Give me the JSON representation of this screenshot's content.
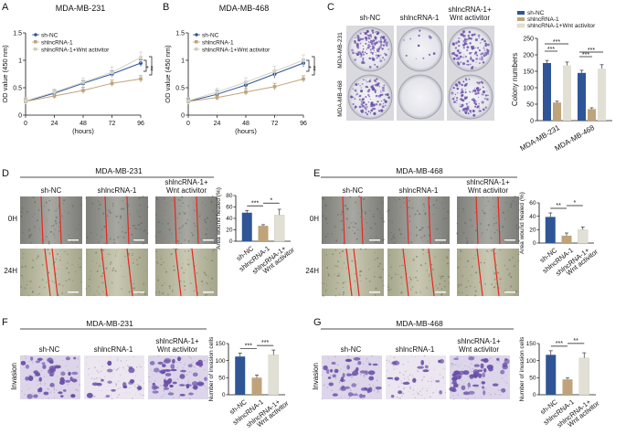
{
  "panels": {
    "A": {
      "letter": "A",
      "title": "MDA-MB-231",
      "legend": [
        "sh-NC",
        "shlncRNA-1",
        "shlncRNA-1+Wnt activitor"
      ],
      "sig": [
        "*",
        "**"
      ]
    },
    "B": {
      "letter": "B",
      "title": "MDA-MB-468",
      "legend": [
        "sh-NC",
        "shlncRNA-1",
        "shlncRNA-1+Wnt activitor"
      ],
      "sig": [
        "*",
        "**"
      ]
    },
    "C": {
      "letter": "C",
      "col_labels": [
        "sh-NC",
        "shlncRNA-1",
        "shlncRNA-1+",
        "Wnt activitor"
      ],
      "row_labels": [
        "MDA-MB-231",
        "MDA-MB-468"
      ],
      "sig": [
        "***",
        "***",
        "***",
        "***"
      ]
    },
    "D": {
      "letter": "D",
      "title": "MDA-MB-231",
      "col_labels": [
        "sh-NC",
        "shlncRNA-1",
        "shlncRNA-1+",
        "Wnt activitor"
      ],
      "row_labels": [
        "0H",
        "24H"
      ],
      "sig": [
        "***",
        "*"
      ]
    },
    "E": {
      "letter": "E",
      "title": "MDA-MB-468",
      "col_labels": [
        "sh-NC",
        "shlncRNA-1",
        "shlncRNA-1+",
        "Wnt activitor"
      ],
      "row_labels": [
        "0H",
        "24H"
      ],
      "sig": [
        "**",
        "*"
      ]
    },
    "F": {
      "letter": "F",
      "title": "MDA-MB-231",
      "col_labels": [
        "sh-NC",
        "shlncRNA-1",
        "shlncRNA-1+",
        "Wnt activitor"
      ],
      "row_label": "Invasion",
      "sig": [
        "***",
        "***"
      ]
    },
    "G": {
      "letter": "G",
      "title": "MDA-MB-468",
      "col_labels": [
        "sh-NC",
        "shlncRNA-1",
        "shlncRNA-1+",
        "Wnt activitor"
      ],
      "row_label": "Invasion",
      "sig": [
        "***",
        "**"
      ]
    }
  },
  "colors": {
    "shNC": "#2f5597",
    "shlnc": "#bfa37a",
    "wnt": "#e2e0d4",
    "scratch": "#e8281e",
    "stain": "#6a4fa8"
  },
  "chart_data": [
    {
      "id": "A",
      "type": "line",
      "title": "MDA-MB-231",
      "xlabel": "(hours)",
      "ylabel": "OD value (450 nm)",
      "x": [
        0,
        24,
        48,
        72,
        96
      ],
      "xlim": [
        0,
        96
      ],
      "xticks": [
        "0",
        "24",
        "48",
        "72",
        "96"
      ],
      "ylim": [
        0,
        1.5
      ],
      "yticks": [
        "0",
        "0.5",
        "1",
        "1.5"
      ],
      "series": [
        {
          "name": "sh-NC",
          "values": [
            0.25,
            0.4,
            0.58,
            0.75,
            0.95
          ],
          "err": [
            0.05,
            0.05,
            0.05,
            0.06,
            0.06
          ]
        },
        {
          "name": "shlncRNA-1",
          "values": [
            0.25,
            0.35,
            0.45,
            0.58,
            0.66
          ],
          "err": [
            0.05,
            0.05,
            0.06,
            0.06,
            0.06
          ]
        },
        {
          "name": "shlncRNA-1+Wnt activitor",
          "values": [
            0.26,
            0.42,
            0.6,
            0.78,
            1.05
          ],
          "err": [
            0.06,
            0.06,
            0.08,
            0.1,
            0.1
          ]
        }
      ]
    },
    {
      "id": "B",
      "type": "line",
      "title": "MDA-MB-468",
      "xlabel": "(hours)",
      "ylabel": "OD value (450 nm)",
      "x": [
        0,
        24,
        48,
        72,
        96
      ],
      "xlim": [
        0,
        96
      ],
      "xticks": [
        "0",
        "24",
        "48",
        "72",
        "96"
      ],
      "ylim": [
        0,
        1.5
      ],
      "yticks": [
        "0",
        "0.5",
        "1",
        "1.5"
      ],
      "series": [
        {
          "name": "sh-NC",
          "values": [
            0.25,
            0.38,
            0.55,
            0.75,
            0.95
          ],
          "err": [
            0.05,
            0.07,
            0.06,
            0.07,
            0.07
          ]
        },
        {
          "name": "shlncRNA-1",
          "values": [
            0.25,
            0.32,
            0.42,
            0.52,
            0.66
          ],
          "err": [
            0.04,
            0.05,
            0.06,
            0.06,
            0.06
          ]
        },
        {
          "name": "shlncRNA-1+Wnt activitor",
          "values": [
            0.26,
            0.42,
            0.6,
            0.8,
            1.0
          ],
          "err": [
            0.06,
            0.07,
            0.08,
            0.09,
            0.1
          ]
        }
      ]
    },
    {
      "id": "C",
      "type": "bar",
      "ylabel": "Colony numbers",
      "categories": [
        "MDA-MB-231",
        "MDA-MB-468"
      ],
      "ylim": [
        0,
        250
      ],
      "yticks": [
        "0",
        "50",
        "100",
        "150",
        "200",
        "250"
      ],
      "series": [
        {
          "name": "sh-NC",
          "values": [
            175,
            145
          ],
          "err": [
            8,
            8
          ]
        },
        {
          "name": "shlncRNA-1",
          "values": [
            55,
            35
          ],
          "err": [
            4,
            4
          ]
        },
        {
          "name": "shlncRNA-1+Wnt activitor",
          "values": [
            168,
            158
          ],
          "err": [
            10,
            12
          ]
        }
      ]
    },
    {
      "id": "D",
      "type": "bar",
      "ylabel": "Area wound healed (%)",
      "categories": [
        "sh-NC",
        "shlncRNA-1",
        "shlncRNA-1+\nWnt activitor"
      ],
      "ylim": [
        0,
        80
      ],
      "yticks": [
        "0",
        "20",
        "40",
        "60",
        "80"
      ],
      "values": [
        50,
        27,
        46
      ],
      "err": [
        4,
        2,
        10
      ]
    },
    {
      "id": "E",
      "type": "bar",
      "ylabel": "Area wound healed (%)",
      "categories": [
        "sh-NC",
        "shlncRNA-1",
        "shlncRNA-1+\nWnt activitor"
      ],
      "ylim": [
        0,
        60
      ],
      "yticks": [
        "0",
        "20",
        "40",
        "60"
      ],
      "values": [
        39,
        11,
        20
      ],
      "err": [
        6,
        4,
        4
      ]
    },
    {
      "id": "F",
      "type": "bar",
      "ylabel": "Number of invasion cells",
      "categories": [
        "sh-NC",
        "shlncRNA-1",
        "shlncRNA-1+\nWnt activitor"
      ],
      "ylim": [
        0,
        150
      ],
      "yticks": [
        "0",
        "50",
        "100",
        "150"
      ],
      "values": [
        112,
        50,
        117
      ],
      "err": [
        10,
        8,
        14
      ]
    },
    {
      "id": "G",
      "type": "bar",
      "ylabel": "Number of invasion cells",
      "categories": [
        "sh-NC",
        "shlncRNA-1",
        "shlncRNA-1+\nWnt activitor"
      ],
      "ylim": [
        0,
        150
      ],
      "yticks": [
        "0",
        "50",
        "100",
        "150"
      ],
      "values": [
        117,
        45,
        108
      ],
      "err": [
        12,
        4,
        15
      ]
    }
  ]
}
